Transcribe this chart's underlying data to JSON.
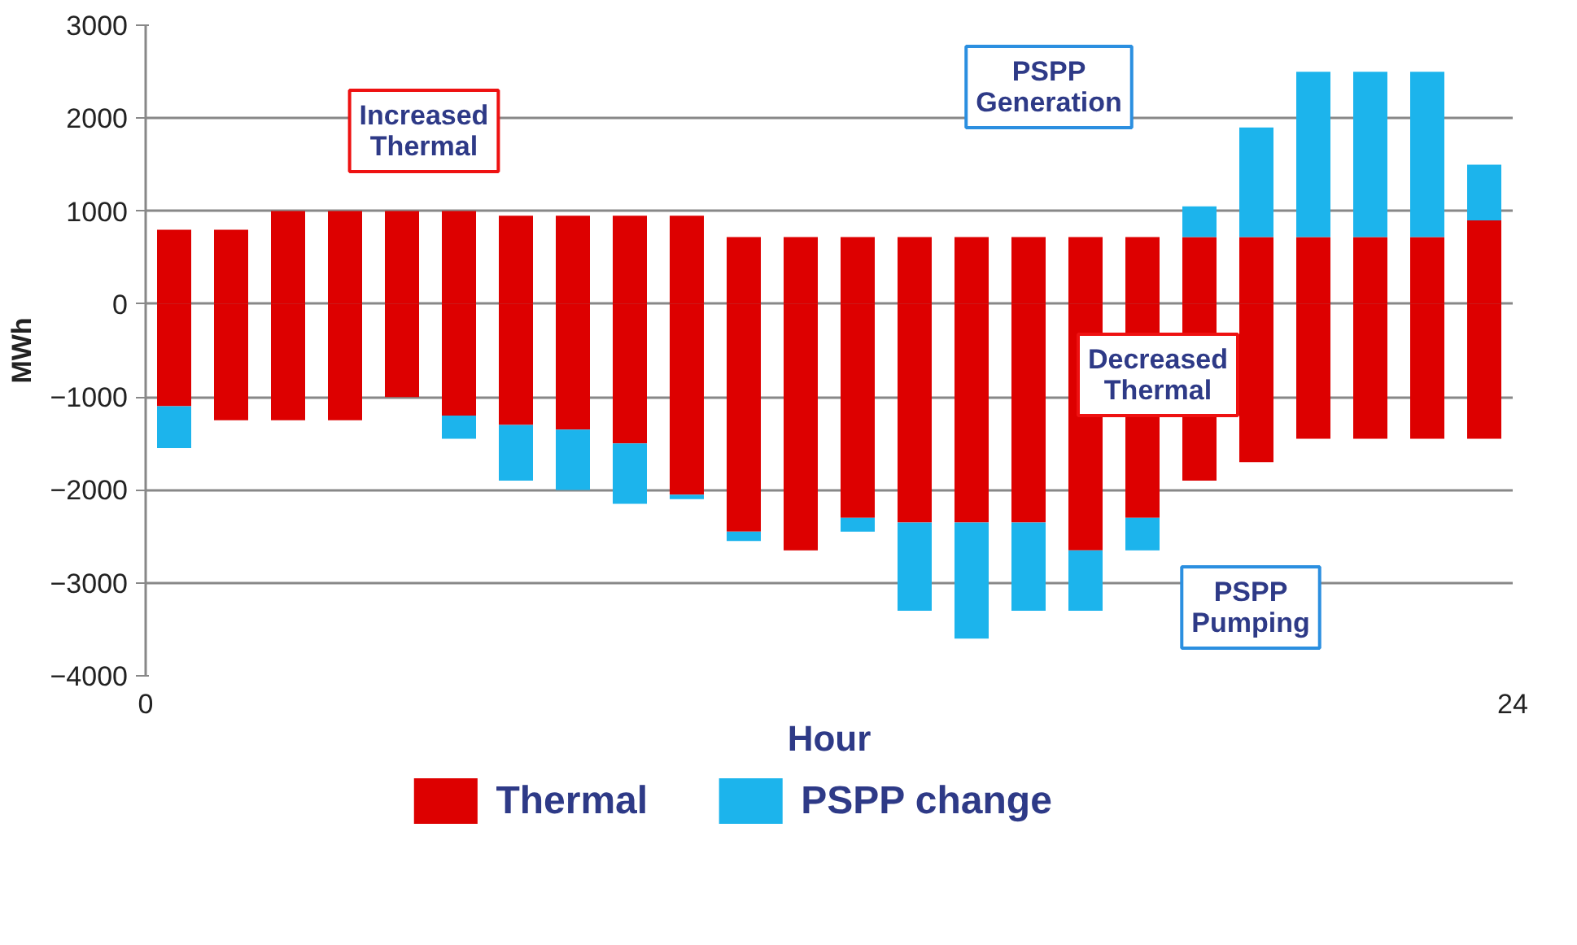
{
  "chart_data": {
    "type": "bar",
    "stacked": true,
    "ylabel": "MWh",
    "xlabel": "Hour",
    "x": [
      0.5,
      1.5,
      2.5,
      3.5,
      4.5,
      5.5,
      6.5,
      7.5,
      8.5,
      9.5,
      10.5,
      11.5,
      12.5,
      13.5,
      14.5,
      15.5,
      16.5,
      17.5,
      18.5,
      19.5,
      20.5,
      21.5,
      22.5,
      23.5
    ],
    "xlim": [
      0,
      24
    ],
    "xticks": [
      0,
      24
    ],
    "ylim": [
      -4000,
      3000
    ],
    "yticks": [
      -4000,
      -3000,
      -2000,
      -1000,
      0,
      1000,
      2000,
      3000
    ],
    "grid": "y",
    "legend": "bottom",
    "series": [
      {
        "name": "Thermal",
        "color": "#dd0000",
        "values": [
          800,
          800,
          1000,
          1000,
          1000,
          1000,
          950,
          950,
          950,
          950,
          720,
          720,
          720,
          720,
          720,
          720,
          720,
          720,
          720,
          720,
          720,
          720,
          720,
          900
        ]
      },
      {
        "name": "PSPP change",
        "color": "#1cb4ec",
        "values": [
          null,
          null,
          null,
          null,
          null,
          null,
          null,
          null,
          null,
          null,
          null,
          null,
          null,
          null,
          null,
          null,
          null,
          null,
          330,
          1180,
          1780,
          1780,
          1780,
          600
        ]
      },
      {
        "color": "#dd0000",
        "values": [
          -1100,
          -1250,
          -1250,
          -1250,
          -1000,
          -1200,
          -1300,
          -1350,
          -1500,
          -2050,
          -2450,
          -2650,
          -2300,
          -2350,
          -2350,
          -2350,
          -2650,
          -2300,
          -1900,
          -1700,
          -1450,
          -1450,
          -1450,
          -1450
        ]
      },
      {
        "color": "#1cb4ec",
        "values": [
          -450,
          null,
          null,
          null,
          null,
          -250,
          -600,
          -650,
          -650,
          -50,
          -100,
          null,
          -150,
          -950,
          -1250,
          -950,
          -650,
          -350,
          null,
          null,
          null,
          null,
          null,
          null
        ]
      }
    ],
    "annotations": [
      "Increased\nThermal",
      "PSPP\nGeneration",
      "Decreased\nThermal",
      "PSPP\nPumping"
    ]
  }
}
